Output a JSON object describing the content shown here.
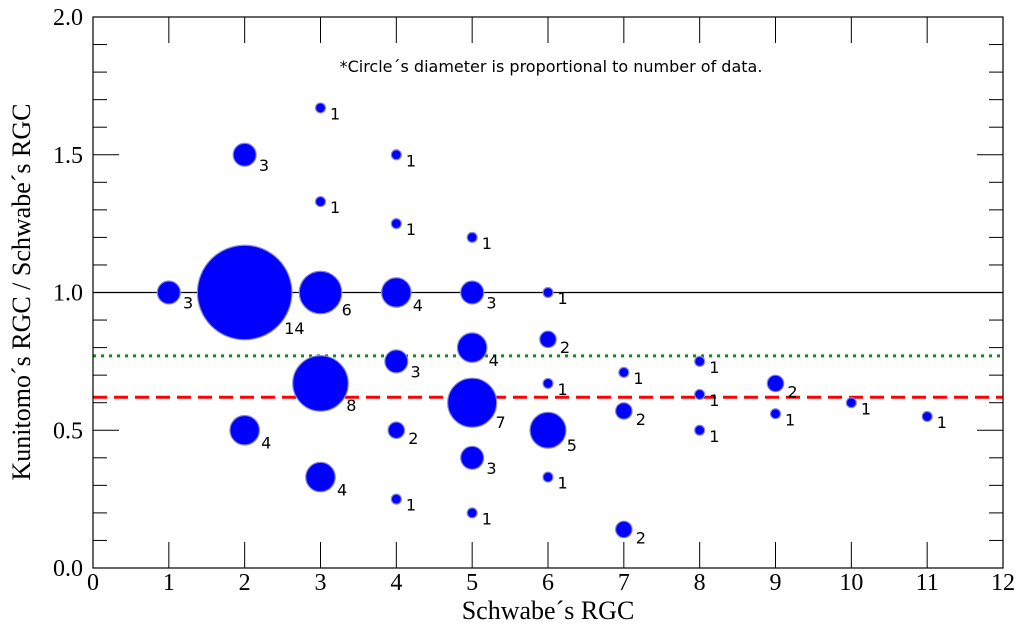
{
  "chart_data": {
    "type": "scatter",
    "title": "",
    "note": "*Circle´s diameter is proportional to number of data.",
    "xlabel": "Schwabe´s RGC",
    "ylabel": "Kunitomo´s RGC / Schwabe´s RGC",
    "xlim": [
      0,
      12
    ],
    "ylim": [
      0,
      2.0
    ],
    "x_ticks": [
      "0",
      "1",
      "2",
      "3",
      "4",
      "5",
      "6",
      "7",
      "8",
      "9",
      "10",
      "11",
      "12"
    ],
    "y_ticks": [
      "0.0",
      "0.5",
      "1.0",
      "1.5",
      "2.0"
    ],
    "grid": false,
    "marker_color": "#0000ff",
    "reference_lines": [
      {
        "y": 1.0,
        "style": "solid",
        "color": "#000000"
      },
      {
        "y": 0.77,
        "style": "dotted",
        "color": "#1a8a1a"
      },
      {
        "y": 0.62,
        "style": "dashed",
        "color": "#ff0000"
      }
    ],
    "points": [
      {
        "x": 1,
        "y": 1.0,
        "n": 3
      },
      {
        "x": 2,
        "y": 1.5,
        "n": 3
      },
      {
        "x": 2,
        "y": 1.0,
        "n": 14
      },
      {
        "x": 2,
        "y": 0.5,
        "n": 4
      },
      {
        "x": 3,
        "y": 1.67,
        "n": 1
      },
      {
        "x": 3,
        "y": 1.33,
        "n": 1
      },
      {
        "x": 3,
        "y": 1.0,
        "n": 6
      },
      {
        "x": 3,
        "y": 0.67,
        "n": 8
      },
      {
        "x": 3,
        "y": 0.33,
        "n": 4
      },
      {
        "x": 4,
        "y": 1.5,
        "n": 1
      },
      {
        "x": 4,
        "y": 1.25,
        "n": 1
      },
      {
        "x": 4,
        "y": 1.0,
        "n": 4
      },
      {
        "x": 4,
        "y": 0.75,
        "n": 3
      },
      {
        "x": 4,
        "y": 0.5,
        "n": 2
      },
      {
        "x": 4,
        "y": 0.25,
        "n": 1
      },
      {
        "x": 5,
        "y": 1.2,
        "n": 1
      },
      {
        "x": 5,
        "y": 1.0,
        "n": 3
      },
      {
        "x": 5,
        "y": 0.8,
        "n": 4
      },
      {
        "x": 5,
        "y": 0.6,
        "n": 7
      },
      {
        "x": 5,
        "y": 0.4,
        "n": 3
      },
      {
        "x": 5,
        "y": 0.2,
        "n": 1
      },
      {
        "x": 6,
        "y": 1.0,
        "n": 1
      },
      {
        "x": 6,
        "y": 0.83,
        "n": 2
      },
      {
        "x": 6,
        "y": 0.67,
        "n": 1
      },
      {
        "x": 6,
        "y": 0.5,
        "n": 5
      },
      {
        "x": 6,
        "y": 0.33,
        "n": 1
      },
      {
        "x": 7,
        "y": 0.71,
        "n": 1
      },
      {
        "x": 7,
        "y": 0.57,
        "n": 2
      },
      {
        "x": 7,
        "y": 0.14,
        "n": 2
      },
      {
        "x": 8,
        "y": 0.75,
        "n": 1
      },
      {
        "x": 8,
        "y": 0.63,
        "n": 1
      },
      {
        "x": 8,
        "y": 0.5,
        "n": 1
      },
      {
        "x": 9,
        "y": 0.67,
        "n": 2
      },
      {
        "x": 9,
        "y": 0.56,
        "n": 1
      },
      {
        "x": 10,
        "y": 0.6,
        "n": 1
      },
      {
        "x": 11,
        "y": 0.55,
        "n": 1
      }
    ]
  }
}
